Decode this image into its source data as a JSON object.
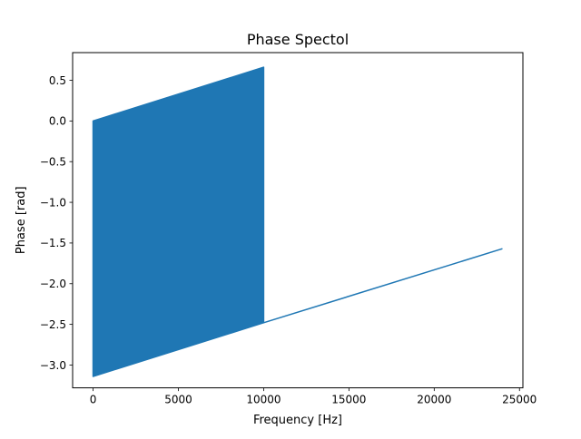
{
  "figure": {
    "title": "Phase Spectol",
    "xlabel": "Frequency [Hz]",
    "ylabel": "Phase [rad]"
  },
  "chart_data": {
    "type": "line",
    "title": "Phase Spectol",
    "xlabel": "Frequency [Hz]",
    "ylabel": "Phase [rad]",
    "xlim": [
      -1200,
      25200
    ],
    "ylim": [
      -3.28,
      0.84
    ],
    "grid": false,
    "series_color": "#1f77b4",
    "x_ticks": [
      {
        "value": 0,
        "label": "0"
      },
      {
        "value": 5000,
        "label": "5000"
      },
      {
        "value": 10000,
        "label": "10000"
      },
      {
        "value": 15000,
        "label": "15000"
      },
      {
        "value": 20000,
        "label": "20000"
      },
      {
        "value": 25000,
        "label": "25000"
      }
    ],
    "y_ticks": [
      {
        "value": 0.5,
        "label": "0.5"
      },
      {
        "value": 0.0,
        "label": "0.0"
      },
      {
        "value": -0.5,
        "label": "−0.5"
      },
      {
        "value": -1.0,
        "label": "−1.0"
      },
      {
        "value": -1.5,
        "label": "−1.5"
      },
      {
        "value": -2.0,
        "label": "−2.0"
      },
      {
        "value": -2.5,
        "label": "−2.5"
      },
      {
        "value": -3.0,
        "label": "−3.0"
      }
    ],
    "oscillating_band": {
      "x": [
        0,
        10000
      ],
      "upper": [
        0.0,
        0.66
      ],
      "lower": [
        -3.14,
        -2.48
      ]
    },
    "tail_line": {
      "x": [
        10000,
        24000
      ],
      "y": [
        -2.48,
        -1.57
      ]
    }
  }
}
